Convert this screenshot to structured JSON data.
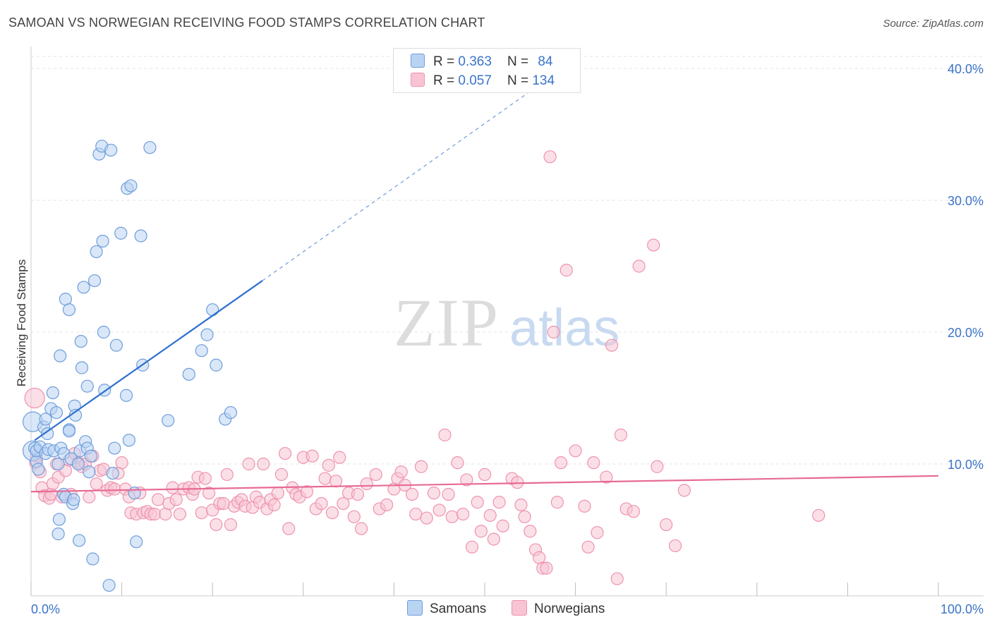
{
  "title": "SAMOAN VS NORWEGIAN RECEIVING FOOD STAMPS CORRELATION CHART",
  "source": "Source: ZipAtlas.com",
  "watermark": {
    "zip": "ZIP",
    "atlas": "atlas"
  },
  "legend": {
    "rows": [
      {
        "r_label": "R =",
        "r_value": "0.363",
        "n_label": "N =",
        "n_value": "84"
      },
      {
        "r_label": "R =",
        "r_value": "0.057",
        "n_label": "N =",
        "n_value": "134"
      }
    ]
  },
  "bottom_legend": {
    "samoans": "Samoans",
    "norwegians": "Norwegians"
  },
  "colors": {
    "samoan_fill": "#b9d3f3",
    "samoan_stroke": "#6e9edb",
    "samoan_line": "#2d6fcf",
    "norwegian_fill": "#f8c4d3",
    "norwegian_stroke": "#ee93ae",
    "norwegian_line": "#e76a95",
    "tick_label": "#3a73c9"
  },
  "chart_data": {
    "type": "scatter",
    "title": "SAMOAN VS NORWEGIAN RECEIVING FOOD STAMPS CORRELATION CHART",
    "xlabel": "",
    "ylabel": "Receiving Food Stamps",
    "xlim": [
      0,
      100
    ],
    "ylim": [
      0,
      40
    ],
    "x_tick_labels": [
      "0.0%",
      "100.0%"
    ],
    "y_ticks": [
      10,
      20,
      30,
      40
    ],
    "y_tick_labels": [
      "10.0%",
      "20.0%",
      "30.0%",
      "40.0%"
    ],
    "grid": true,
    "legend_position": "top-center",
    "series": [
      {
        "name": "Samoans",
        "trend": {
          "x0": 0.4,
          "y0": 11.8,
          "x1": 25.5,
          "y1": 23.9,
          "dashed_to_x": 55.5,
          "dashed_to_y": 38.5
        },
        "points": [
          [
            0.2,
            13.2,
            "l"
          ],
          [
            0.2,
            11.0,
            "l"
          ],
          [
            0.4,
            11.2
          ],
          [
            0.6,
            10.2
          ],
          [
            0.6,
            11.0
          ],
          [
            0.8,
            9.6
          ],
          [
            1.0,
            11.3
          ],
          [
            1.4,
            12.8
          ],
          [
            1.6,
            13.4
          ],
          [
            1.6,
            10.8
          ],
          [
            1.8,
            12.3
          ],
          [
            1.9,
            11.1
          ],
          [
            2.2,
            14.2
          ],
          [
            2.4,
            15.4
          ],
          [
            2.5,
            11.0
          ],
          [
            2.8,
            13.9
          ],
          [
            3.0,
            10.0
          ],
          [
            3.0,
            4.7
          ],
          [
            3.1,
            5.8
          ],
          [
            3.2,
            18.2
          ],
          [
            3.3,
            11.2
          ],
          [
            3.6,
            10.8
          ],
          [
            3.6,
            7.7
          ],
          [
            3.8,
            22.5
          ],
          [
            3.8,
            7.5
          ],
          [
            4.2,
            21.7
          ],
          [
            4.2,
            12.6
          ],
          [
            4.2,
            12.5
          ],
          [
            4.4,
            10.4
          ],
          [
            4.6,
            7.0
          ],
          [
            4.7,
            7.3
          ],
          [
            4.8,
            14.4
          ],
          [
            4.9,
            13.7
          ],
          [
            5.2,
            10.0
          ],
          [
            5.3,
            4.2
          ],
          [
            5.4,
            11.0
          ],
          [
            5.5,
            19.3
          ],
          [
            5.6,
            17.3
          ],
          [
            5.8,
            23.4
          ],
          [
            6.0,
            11.7
          ],
          [
            6.2,
            11.2
          ],
          [
            6.2,
            15.9
          ],
          [
            6.4,
            9.4
          ],
          [
            6.6,
            10.6
          ],
          [
            6.8,
            2.8
          ],
          [
            7.0,
            23.9
          ],
          [
            7.2,
            26.1
          ],
          [
            7.5,
            33.5
          ],
          [
            7.8,
            34.1
          ],
          [
            7.9,
            26.9
          ],
          [
            8.1,
            15.6
          ],
          [
            8.0,
            20.0
          ],
          [
            8.6,
            0.8
          ],
          [
            8.8,
            33.8
          ],
          [
            9.0,
            9.3
          ],
          [
            9.2,
            11.2
          ],
          [
            9.4,
            19.0
          ],
          [
            9.9,
            27.5
          ],
          [
            10.5,
            15.2
          ],
          [
            10.6,
            30.9
          ],
          [
            10.8,
            11.8
          ],
          [
            11.0,
            31.1
          ],
          [
            11.4,
            7.8
          ],
          [
            11.6,
            4.1
          ],
          [
            12.1,
            27.3
          ],
          [
            12.3,
            17.5
          ],
          [
            13.1,
            34.0
          ],
          [
            15.1,
            13.3
          ],
          [
            17.4,
            16.8
          ],
          [
            18.8,
            18.6
          ],
          [
            19.4,
            19.8
          ],
          [
            20.0,
            21.7
          ],
          [
            20.4,
            17.5
          ],
          [
            21.4,
            13.4
          ],
          [
            22.0,
            13.9
          ]
        ]
      },
      {
        "name": "Norwegians",
        "trend": {
          "x0": 0.0,
          "y0": 7.9,
          "x1": 100.0,
          "y1": 9.1
        },
        "points": [
          [
            0.4,
            15.0,
            "l"
          ],
          [
            0.5,
            10.1
          ],
          [
            0.6,
            10.6
          ],
          [
            1.0,
            9.4
          ],
          [
            1.2,
            8.2
          ],
          [
            1.5,
            7.6
          ],
          [
            2.0,
            7.4
          ],
          [
            2.2,
            7.7
          ],
          [
            2.4,
            8.5
          ],
          [
            2.8,
            10.0
          ],
          [
            3.0,
            9.0
          ],
          [
            3.4,
            7.5
          ],
          [
            3.8,
            9.5
          ],
          [
            4.2,
            10.3
          ],
          [
            4.4,
            7.7
          ],
          [
            4.8,
            10.8
          ],
          [
            5.2,
            10.1
          ],
          [
            5.6,
            9.8
          ],
          [
            6.0,
            10.0
          ],
          [
            6.4,
            7.5
          ],
          [
            6.8,
            10.6
          ],
          [
            7.2,
            8.5
          ],
          [
            7.6,
            9.5
          ],
          [
            8.0,
            9.6
          ],
          [
            8.4,
            8.0
          ],
          [
            8.8,
            8.2
          ],
          [
            9.2,
            8.1
          ],
          [
            9.6,
            9.3
          ],
          [
            10.0,
            10.1
          ],
          [
            10.4,
            8.1
          ],
          [
            10.8,
            7.5
          ],
          [
            11.0,
            6.3
          ],
          [
            11.6,
            6.2
          ],
          [
            12.0,
            7.8
          ],
          [
            12.4,
            6.3
          ],
          [
            12.8,
            6.4
          ],
          [
            13.2,
            6.2
          ],
          [
            13.6,
            6.2
          ],
          [
            14.0,
            7.3
          ],
          [
            14.8,
            6.2
          ],
          [
            15.2,
            7.0
          ],
          [
            15.6,
            8.2
          ],
          [
            16.0,
            7.3
          ],
          [
            16.4,
            6.2
          ],
          [
            16.8,
            8.1
          ],
          [
            17.4,
            8.2
          ],
          [
            17.8,
            7.7
          ],
          [
            18.0,
            8.1
          ],
          [
            18.4,
            9.0
          ],
          [
            18.8,
            6.3
          ],
          [
            19.2,
            8.9
          ],
          [
            19.6,
            7.8
          ],
          [
            20.0,
            6.5
          ],
          [
            20.4,
            5.4
          ],
          [
            20.8,
            7.0
          ],
          [
            21.2,
            7.0
          ],
          [
            21.6,
            9.2
          ],
          [
            22.0,
            5.4
          ],
          [
            22.4,
            6.8
          ],
          [
            22.8,
            7.1
          ],
          [
            23.2,
            7.3
          ],
          [
            23.6,
            6.8
          ],
          [
            24.0,
            10.0
          ],
          [
            24.4,
            6.7
          ],
          [
            24.8,
            7.5
          ],
          [
            25.2,
            7.1
          ],
          [
            25.6,
            10.0
          ],
          [
            26.0,
            6.6
          ],
          [
            26.4,
            7.3
          ],
          [
            26.8,
            6.9
          ],
          [
            27.2,
            7.8
          ],
          [
            27.6,
            9.2
          ],
          [
            28.0,
            10.8
          ],
          [
            28.4,
            5.1
          ],
          [
            28.8,
            8.2
          ],
          [
            29.2,
            7.7
          ],
          [
            29.6,
            7.5
          ],
          [
            30.0,
            10.5
          ],
          [
            30.4,
            7.9
          ],
          [
            31.0,
            10.6
          ],
          [
            31.4,
            6.6
          ],
          [
            32.0,
            7.0
          ],
          [
            32.4,
            8.9
          ],
          [
            32.8,
            9.9
          ],
          [
            33.2,
            6.3
          ],
          [
            33.6,
            8.7
          ],
          [
            34.0,
            10.5
          ],
          [
            34.4,
            7.0
          ],
          [
            35.0,
            7.8
          ],
          [
            35.6,
            6.0
          ],
          [
            36.0,
            7.7
          ],
          [
            36.4,
            5.1
          ],
          [
            37.0,
            8.5
          ],
          [
            38.0,
            9.2
          ],
          [
            38.4,
            6.6
          ],
          [
            39.2,
            6.9
          ],
          [
            40.0,
            8.1
          ],
          [
            40.4,
            8.9
          ],
          [
            40.8,
            9.4
          ],
          [
            41.2,
            8.4
          ],
          [
            42.0,
            7.7
          ],
          [
            42.4,
            6.2
          ],
          [
            43.0,
            9.8
          ],
          [
            43.6,
            5.9
          ],
          [
            44.4,
            7.8
          ],
          [
            45.0,
            6.5
          ],
          [
            45.6,
            12.2
          ],
          [
            46.0,
            7.7
          ],
          [
            46.4,
            6.0
          ],
          [
            47.0,
            10.1
          ],
          [
            47.6,
            6.2
          ],
          [
            48.0,
            8.8
          ],
          [
            48.6,
            3.7
          ],
          [
            49.2,
            7.1
          ],
          [
            49.6,
            4.9
          ],
          [
            50.0,
            9.2
          ],
          [
            50.6,
            6.1
          ],
          [
            51.0,
            4.3
          ],
          [
            51.6,
            7.1
          ],
          [
            52.0,
            5.3
          ],
          [
            53.0,
            8.9
          ],
          [
            53.6,
            8.6
          ],
          [
            54.0,
            6.9
          ],
          [
            54.4,
            6.0
          ],
          [
            55.0,
            4.9
          ],
          [
            55.6,
            3.5
          ],
          [
            56.0,
            2.9
          ],
          [
            56.4,
            2.1
          ],
          [
            56.8,
            2.1
          ],
          [
            57.2,
            33.3
          ],
          [
            57.6,
            20.0
          ],
          [
            58.0,
            7.1
          ],
          [
            58.4,
            10.1
          ],
          [
            59.0,
            24.7
          ],
          [
            60.0,
            11.0
          ],
          [
            61.0,
            6.8
          ],
          [
            61.4,
            3.7
          ],
          [
            62.0,
            10.1
          ],
          [
            62.4,
            4.8
          ],
          [
            63.4,
            9.0
          ],
          [
            64.0,
            19.0
          ],
          [
            64.6,
            1.3
          ],
          [
            65.0,
            12.2
          ],
          [
            65.6,
            6.6
          ],
          [
            66.4,
            6.4
          ],
          [
            67.0,
            25.0
          ],
          [
            68.6,
            26.6
          ],
          [
            69.0,
            9.8
          ],
          [
            70.0,
            5.4
          ],
          [
            71.0,
            3.8
          ],
          [
            72.0,
            8.0
          ],
          [
            86.8,
            6.1
          ]
        ]
      }
    ]
  }
}
